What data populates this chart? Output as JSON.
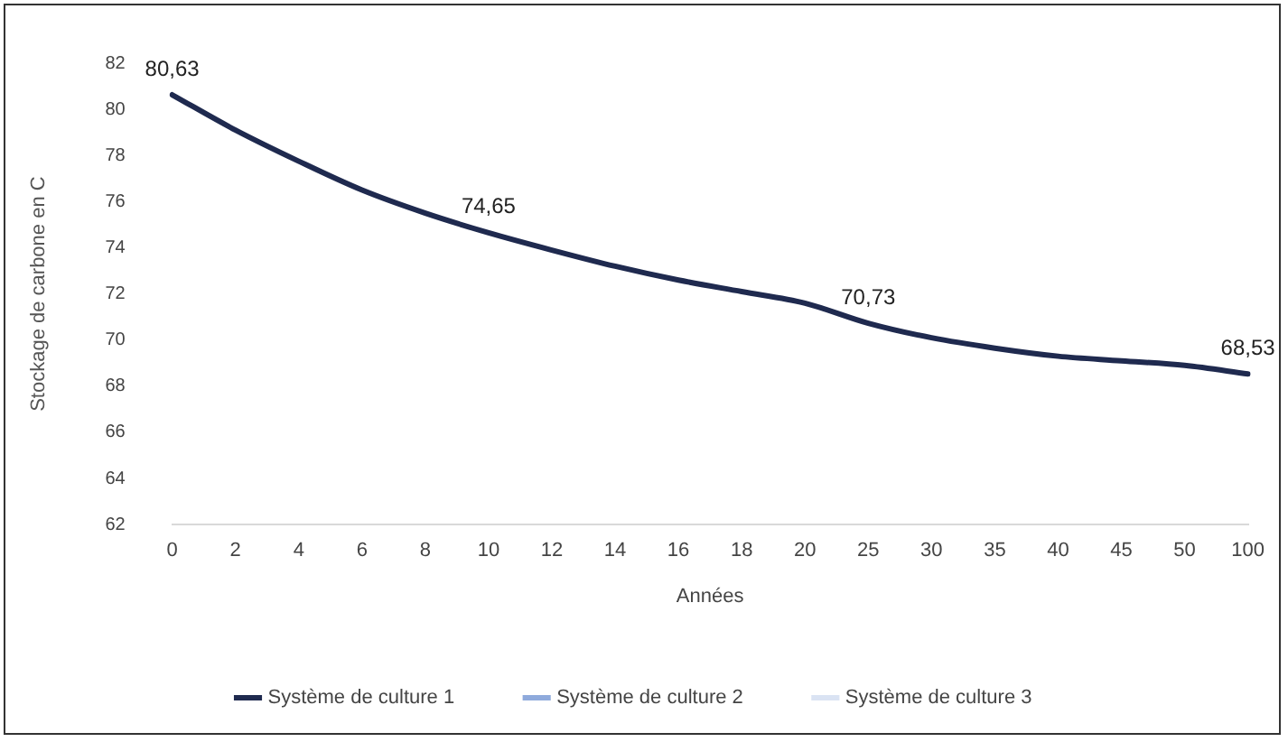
{
  "chart_data": {
    "type": "line",
    "xlabel": "Années",
    "ylabel": "Stockage de carbone en C",
    "categories": [
      "0",
      "2",
      "4",
      "6",
      "8",
      "10",
      "12",
      "14",
      "16",
      "18",
      "20",
      "25",
      "30",
      "35",
      "40",
      "45",
      "50",
      "100"
    ],
    "series": [
      {
        "name": "Système de culture 1",
        "color": "#1f2a4f",
        "values": [
          80.63,
          79.1,
          77.75,
          76.5,
          75.5,
          74.65,
          73.9,
          73.2,
          72.6,
          72.1,
          71.6,
          70.73,
          70.1,
          69.65,
          69.3,
          69.1,
          68.9,
          68.53
        ],
        "value_labels": [
          "80,63",
          null,
          null,
          null,
          null,
          "74,65",
          null,
          null,
          null,
          null,
          null,
          "70,73",
          null,
          null,
          null,
          null,
          null,
          "68,53"
        ]
      },
      {
        "name": "Système de culture 2",
        "color": "#8faadc",
        "values": [
          null,
          null,
          null,
          null,
          null,
          null,
          null,
          null,
          null,
          null,
          null,
          null,
          null,
          null,
          null,
          null,
          null,
          null
        ]
      },
      {
        "name": "Système de culture 3",
        "color": "#dae3f3",
        "values": [
          null,
          null,
          null,
          null,
          null,
          null,
          null,
          null,
          null,
          null,
          null,
          null,
          null,
          null,
          null,
          null,
          null,
          null
        ]
      }
    ],
    "ylim": [
      62,
      82
    ],
    "yticks": [
      62,
      64,
      66,
      68,
      70,
      72,
      74,
      76,
      78,
      80,
      82
    ],
    "grid": false,
    "legend": "bottom",
    "marker": "none",
    "line_style": "solid"
  }
}
